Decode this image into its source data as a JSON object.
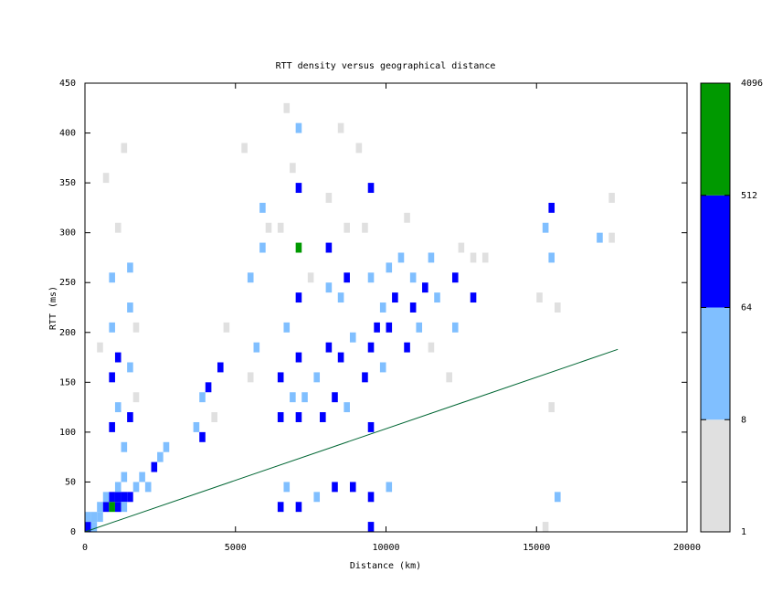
{
  "chart_data": {
    "type": "heatmap",
    "title": "RTT density versus geographical distance",
    "x_label": "Distance (km)",
    "y_label": "RTT (ms)",
    "xlim": [
      0,
      20000
    ],
    "xticks": [
      0,
      5000,
      10000,
      15000,
      20000
    ],
    "ylim": [
      0,
      450
    ],
    "yticks": [
      0,
      50,
      100,
      150,
      200,
      250,
      300,
      350,
      400,
      450
    ],
    "colorbar": {
      "scale": "log",
      "ticks": [
        1,
        8,
        64,
        512,
        4096
      ],
      "colors": [
        "#e0e0e0",
        "#80bfff",
        "#0000ff",
        "#009900"
      ]
    },
    "line": {
      "color": "#006633",
      "x": [
        0,
        17700
      ],
      "y": [
        0,
        183
      ]
    },
    "cells": [
      {
        "x": 0,
        "y": 0,
        "count": 150
      },
      {
        "x": 0,
        "y": 10,
        "count": 20
      },
      {
        "x": 200,
        "y": 0,
        "count": 20
      },
      {
        "x": 200,
        "y": 10,
        "count": 20
      },
      {
        "x": 400,
        "y": 10,
        "count": 20
      },
      {
        "x": 400,
        "y": 20,
        "count": 20
      },
      {
        "x": 600,
        "y": 20,
        "count": 150
      },
      {
        "x": 600,
        "y": 30,
        "count": 20
      },
      {
        "x": 800,
        "y": 20,
        "count": 1000
      },
      {
        "x": 800,
        "y": 30,
        "count": 150
      },
      {
        "x": 1000,
        "y": 20,
        "count": 150
      },
      {
        "x": 1000,
        "y": 30,
        "count": 150
      },
      {
        "x": 1200,
        "y": 30,
        "count": 150
      },
      {
        "x": 1200,
        "y": 20,
        "count": 20
      },
      {
        "x": 1400,
        "y": 30,
        "count": 150
      },
      {
        "x": 1000,
        "y": 40,
        "count": 20
      },
      {
        "x": 1200,
        "y": 50,
        "count": 20
      },
      {
        "x": 1600,
        "y": 40,
        "count": 20
      },
      {
        "x": 1800,
        "y": 50,
        "count": 20
      },
      {
        "x": 2200,
        "y": 60,
        "count": 150
      },
      {
        "x": 2400,
        "y": 70,
        "count": 20
      },
      {
        "x": 2600,
        "y": 80,
        "count": 20
      },
      {
        "x": 2000,
        "y": 40,
        "count": 20
      },
      {
        "x": 800,
        "y": 100,
        "count": 150
      },
      {
        "x": 800,
        "y": 150,
        "count": 150
      },
      {
        "x": 800,
        "y": 200,
        "count": 20
      },
      {
        "x": 800,
        "y": 250,
        "count": 20
      },
      {
        "x": 1000,
        "y": 120,
        "count": 20
      },
      {
        "x": 1000,
        "y": 170,
        "count": 150
      },
      {
        "x": 1400,
        "y": 110,
        "count": 150
      },
      {
        "x": 1400,
        "y": 160,
        "count": 20
      },
      {
        "x": 1400,
        "y": 220,
        "count": 20
      },
      {
        "x": 1400,
        "y": 260,
        "count": 20
      },
      {
        "x": 1200,
        "y": 80,
        "count": 20
      },
      {
        "x": 1600,
        "y": 130,
        "count": 3
      },
      {
        "x": 1000,
        "y": 300,
        "count": 3
      },
      {
        "x": 1200,
        "y": 380,
        "count": 3
      },
      {
        "x": 600,
        "y": 350,
        "count": 3
      },
      {
        "x": 1600,
        "y": 200,
        "count": 3
      },
      {
        "x": 400,
        "y": 180,
        "count": 3
      },
      {
        "x": 3800,
        "y": 90,
        "count": 150
      },
      {
        "x": 3800,
        "y": 130,
        "count": 20
      },
      {
        "x": 4000,
        "y": 140,
        "count": 150
      },
      {
        "x": 4200,
        "y": 110,
        "count": 3
      },
      {
        "x": 4400,
        "y": 160,
        "count": 150
      },
      {
        "x": 4600,
        "y": 200,
        "count": 3
      },
      {
        "x": 3600,
        "y": 100,
        "count": 20
      },
      {
        "x": 5400,
        "y": 250,
        "count": 20
      },
      {
        "x": 5800,
        "y": 280,
        "count": 20
      },
      {
        "x": 5800,
        "y": 320,
        "count": 20
      },
      {
        "x": 5600,
        "y": 180,
        "count": 20
      },
      {
        "x": 5400,
        "y": 150,
        "count": 3
      },
      {
        "x": 6000,
        "y": 300,
        "count": 3
      },
      {
        "x": 5200,
        "y": 380,
        "count": 3
      },
      {
        "x": 6400,
        "y": 110,
        "count": 150
      },
      {
        "x": 6400,
        "y": 150,
        "count": 150
      },
      {
        "x": 6600,
        "y": 200,
        "count": 20
      },
      {
        "x": 6600,
        "y": 40,
        "count": 20
      },
      {
        "x": 6400,
        "y": 20,
        "count": 150
      },
      {
        "x": 7000,
        "y": 110,
        "count": 150
      },
      {
        "x": 7000,
        "y": 170,
        "count": 150
      },
      {
        "x": 7000,
        "y": 230,
        "count": 150
      },
      {
        "x": 7000,
        "y": 280,
        "count": 1000
      },
      {
        "x": 7000,
        "y": 340,
        "count": 150
      },
      {
        "x": 7000,
        "y": 400,
        "count": 20
      },
      {
        "x": 7000,
        "y": 20,
        "count": 150
      },
      {
        "x": 6800,
        "y": 130,
        "count": 20
      },
      {
        "x": 7200,
        "y": 130,
        "count": 20
      },
      {
        "x": 6400,
        "y": 300,
        "count": 3
      },
      {
        "x": 6800,
        "y": 360,
        "count": 3
      },
      {
        "x": 6600,
        "y": 420,
        "count": 3
      },
      {
        "x": 7400,
        "y": 250,
        "count": 3
      },
      {
        "x": 7600,
        "y": 150,
        "count": 20
      },
      {
        "x": 7800,
        "y": 110,
        "count": 150
      },
      {
        "x": 8000,
        "y": 180,
        "count": 150
      },
      {
        "x": 8000,
        "y": 240,
        "count": 20
      },
      {
        "x": 8000,
        "y": 280,
        "count": 150
      },
      {
        "x": 8200,
        "y": 40,
        "count": 150
      },
      {
        "x": 8200,
        "y": 130,
        "count": 150
      },
      {
        "x": 8400,
        "y": 170,
        "count": 150
      },
      {
        "x": 8400,
        "y": 230,
        "count": 20
      },
      {
        "x": 8600,
        "y": 250,
        "count": 150
      },
      {
        "x": 8600,
        "y": 120,
        "count": 20
      },
      {
        "x": 8800,
        "y": 40,
        "count": 150
      },
      {
        "x": 8800,
        "y": 190,
        "count": 20
      },
      {
        "x": 8000,
        "y": 330,
        "count": 3
      },
      {
        "x": 8400,
        "y": 400,
        "count": 3
      },
      {
        "x": 7600,
        "y": 30,
        "count": 20
      },
      {
        "x": 8600,
        "y": 300,
        "count": 3
      },
      {
        "x": 9200,
        "y": 150,
        "count": 150
      },
      {
        "x": 9400,
        "y": 180,
        "count": 150
      },
      {
        "x": 9400,
        "y": 100,
        "count": 150
      },
      {
        "x": 9400,
        "y": 30,
        "count": 150
      },
      {
        "x": 9400,
        "y": 0,
        "count": 150
      },
      {
        "x": 9400,
        "y": 250,
        "count": 20
      },
      {
        "x": 9400,
        "y": 340,
        "count": 150
      },
      {
        "x": 9600,
        "y": 200,
        "count": 150
      },
      {
        "x": 9800,
        "y": 160,
        "count": 20
      },
      {
        "x": 9800,
        "y": 220,
        "count": 20
      },
      {
        "x": 10000,
        "y": 40,
        "count": 20
      },
      {
        "x": 10000,
        "y": 200,
        "count": 150
      },
      {
        "x": 10000,
        "y": 260,
        "count": 20
      },
      {
        "x": 9200,
        "y": 300,
        "count": 3
      },
      {
        "x": 9000,
        "y": 380,
        "count": 3
      },
      {
        "x": 10200,
        "y": 230,
        "count": 150
      },
      {
        "x": 10400,
        "y": 270,
        "count": 20
      },
      {
        "x": 10600,
        "y": 180,
        "count": 150
      },
      {
        "x": 10800,
        "y": 220,
        "count": 150
      },
      {
        "x": 10800,
        "y": 250,
        "count": 20
      },
      {
        "x": 11000,
        "y": 200,
        "count": 20
      },
      {
        "x": 11200,
        "y": 240,
        "count": 150
      },
      {
        "x": 11400,
        "y": 270,
        "count": 20
      },
      {
        "x": 11600,
        "y": 230,
        "count": 20
      },
      {
        "x": 11400,
        "y": 180,
        "count": 3
      },
      {
        "x": 10600,
        "y": 310,
        "count": 3
      },
      {
        "x": 12200,
        "y": 250,
        "count": 150
      },
      {
        "x": 12200,
        "y": 200,
        "count": 20
      },
      {
        "x": 12400,
        "y": 280,
        "count": 3
      },
      {
        "x": 12800,
        "y": 230,
        "count": 150
      },
      {
        "x": 12800,
        "y": 270,
        "count": 3
      },
      {
        "x": 13200,
        "y": 270,
        "count": 3
      },
      {
        "x": 12000,
        "y": 150,
        "count": 3
      },
      {
        "x": 15000,
        "y": 230,
        "count": 3
      },
      {
        "x": 15200,
        "y": 300,
        "count": 20
      },
      {
        "x": 15400,
        "y": 320,
        "count": 150
      },
      {
        "x": 15400,
        "y": 270,
        "count": 20
      },
      {
        "x": 15600,
        "y": 30,
        "count": 20
      },
      {
        "x": 15600,
        "y": 220,
        "count": 3
      },
      {
        "x": 15400,
        "y": 120,
        "count": 3
      },
      {
        "x": 15200,
        "y": 0,
        "count": 3
      },
      {
        "x": 17000,
        "y": 290,
        "count": 20
      },
      {
        "x": 17400,
        "y": 290,
        "count": 3
      },
      {
        "x": 17400,
        "y": 330,
        "count": 3
      }
    ]
  }
}
